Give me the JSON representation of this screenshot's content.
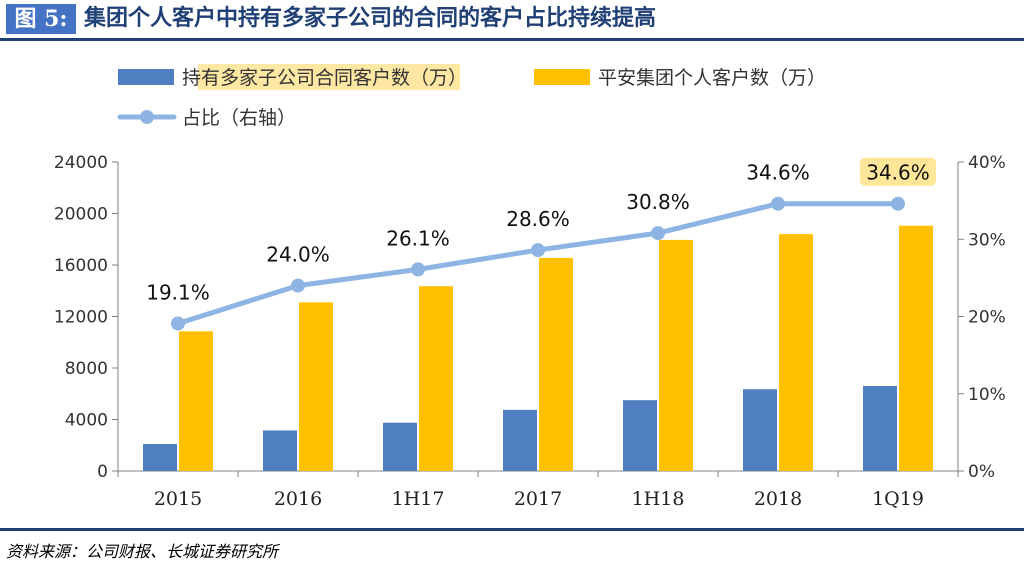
{
  "figure": {
    "label": "图 5:",
    "title": "集团个人客户中持有多家子公司的合同的客户占比持续提高",
    "source": "资料来源：公司财报、长城证券研究所"
  },
  "colors": {
    "bar_multi": "#4f7fc0",
    "bar_total": "#ffc000",
    "line": "#8eb4e3",
    "title": "#1f3f75",
    "highlight": "#ffe699"
  },
  "chart_data": {
    "type": "bar",
    "categories": [
      "2015",
      "2016",
      "1H17",
      "2017",
      "1H18",
      "2018",
      "1Q19"
    ],
    "series": [
      {
        "name": "持有多家子公司合同客户数（万）",
        "type": "bar",
        "axis": "left",
        "values": [
          2100,
          3150,
          3750,
          4750,
          5500,
          6350,
          6600
        ]
      },
      {
        "name": "平安集团个人客户数（万）",
        "type": "bar",
        "axis": "left",
        "values": [
          10850,
          13100,
          14350,
          16550,
          17950,
          18400,
          19050
        ]
      },
      {
        "name": "占比（右轴）",
        "type": "line",
        "axis": "right",
        "values": [
          19.1,
          24.0,
          26.1,
          28.6,
          30.8,
          34.6,
          34.6
        ],
        "labels": [
          "19.1%",
          "24.0%",
          "26.1%",
          "28.6%",
          "30.8%",
          "34.6%",
          "34.6%"
        ]
      }
    ],
    "y_left": {
      "min": 0,
      "max": 24000,
      "ticks": [
        "0",
        "4000",
        "8000",
        "12000",
        "16000",
        "20000",
        "24000"
      ]
    },
    "y_right": {
      "min": 0,
      "max": 40,
      "ticks": [
        "0%",
        "10%",
        "20%",
        "30%",
        "40%"
      ]
    },
    "legend_position": "top-left",
    "grid": false
  }
}
